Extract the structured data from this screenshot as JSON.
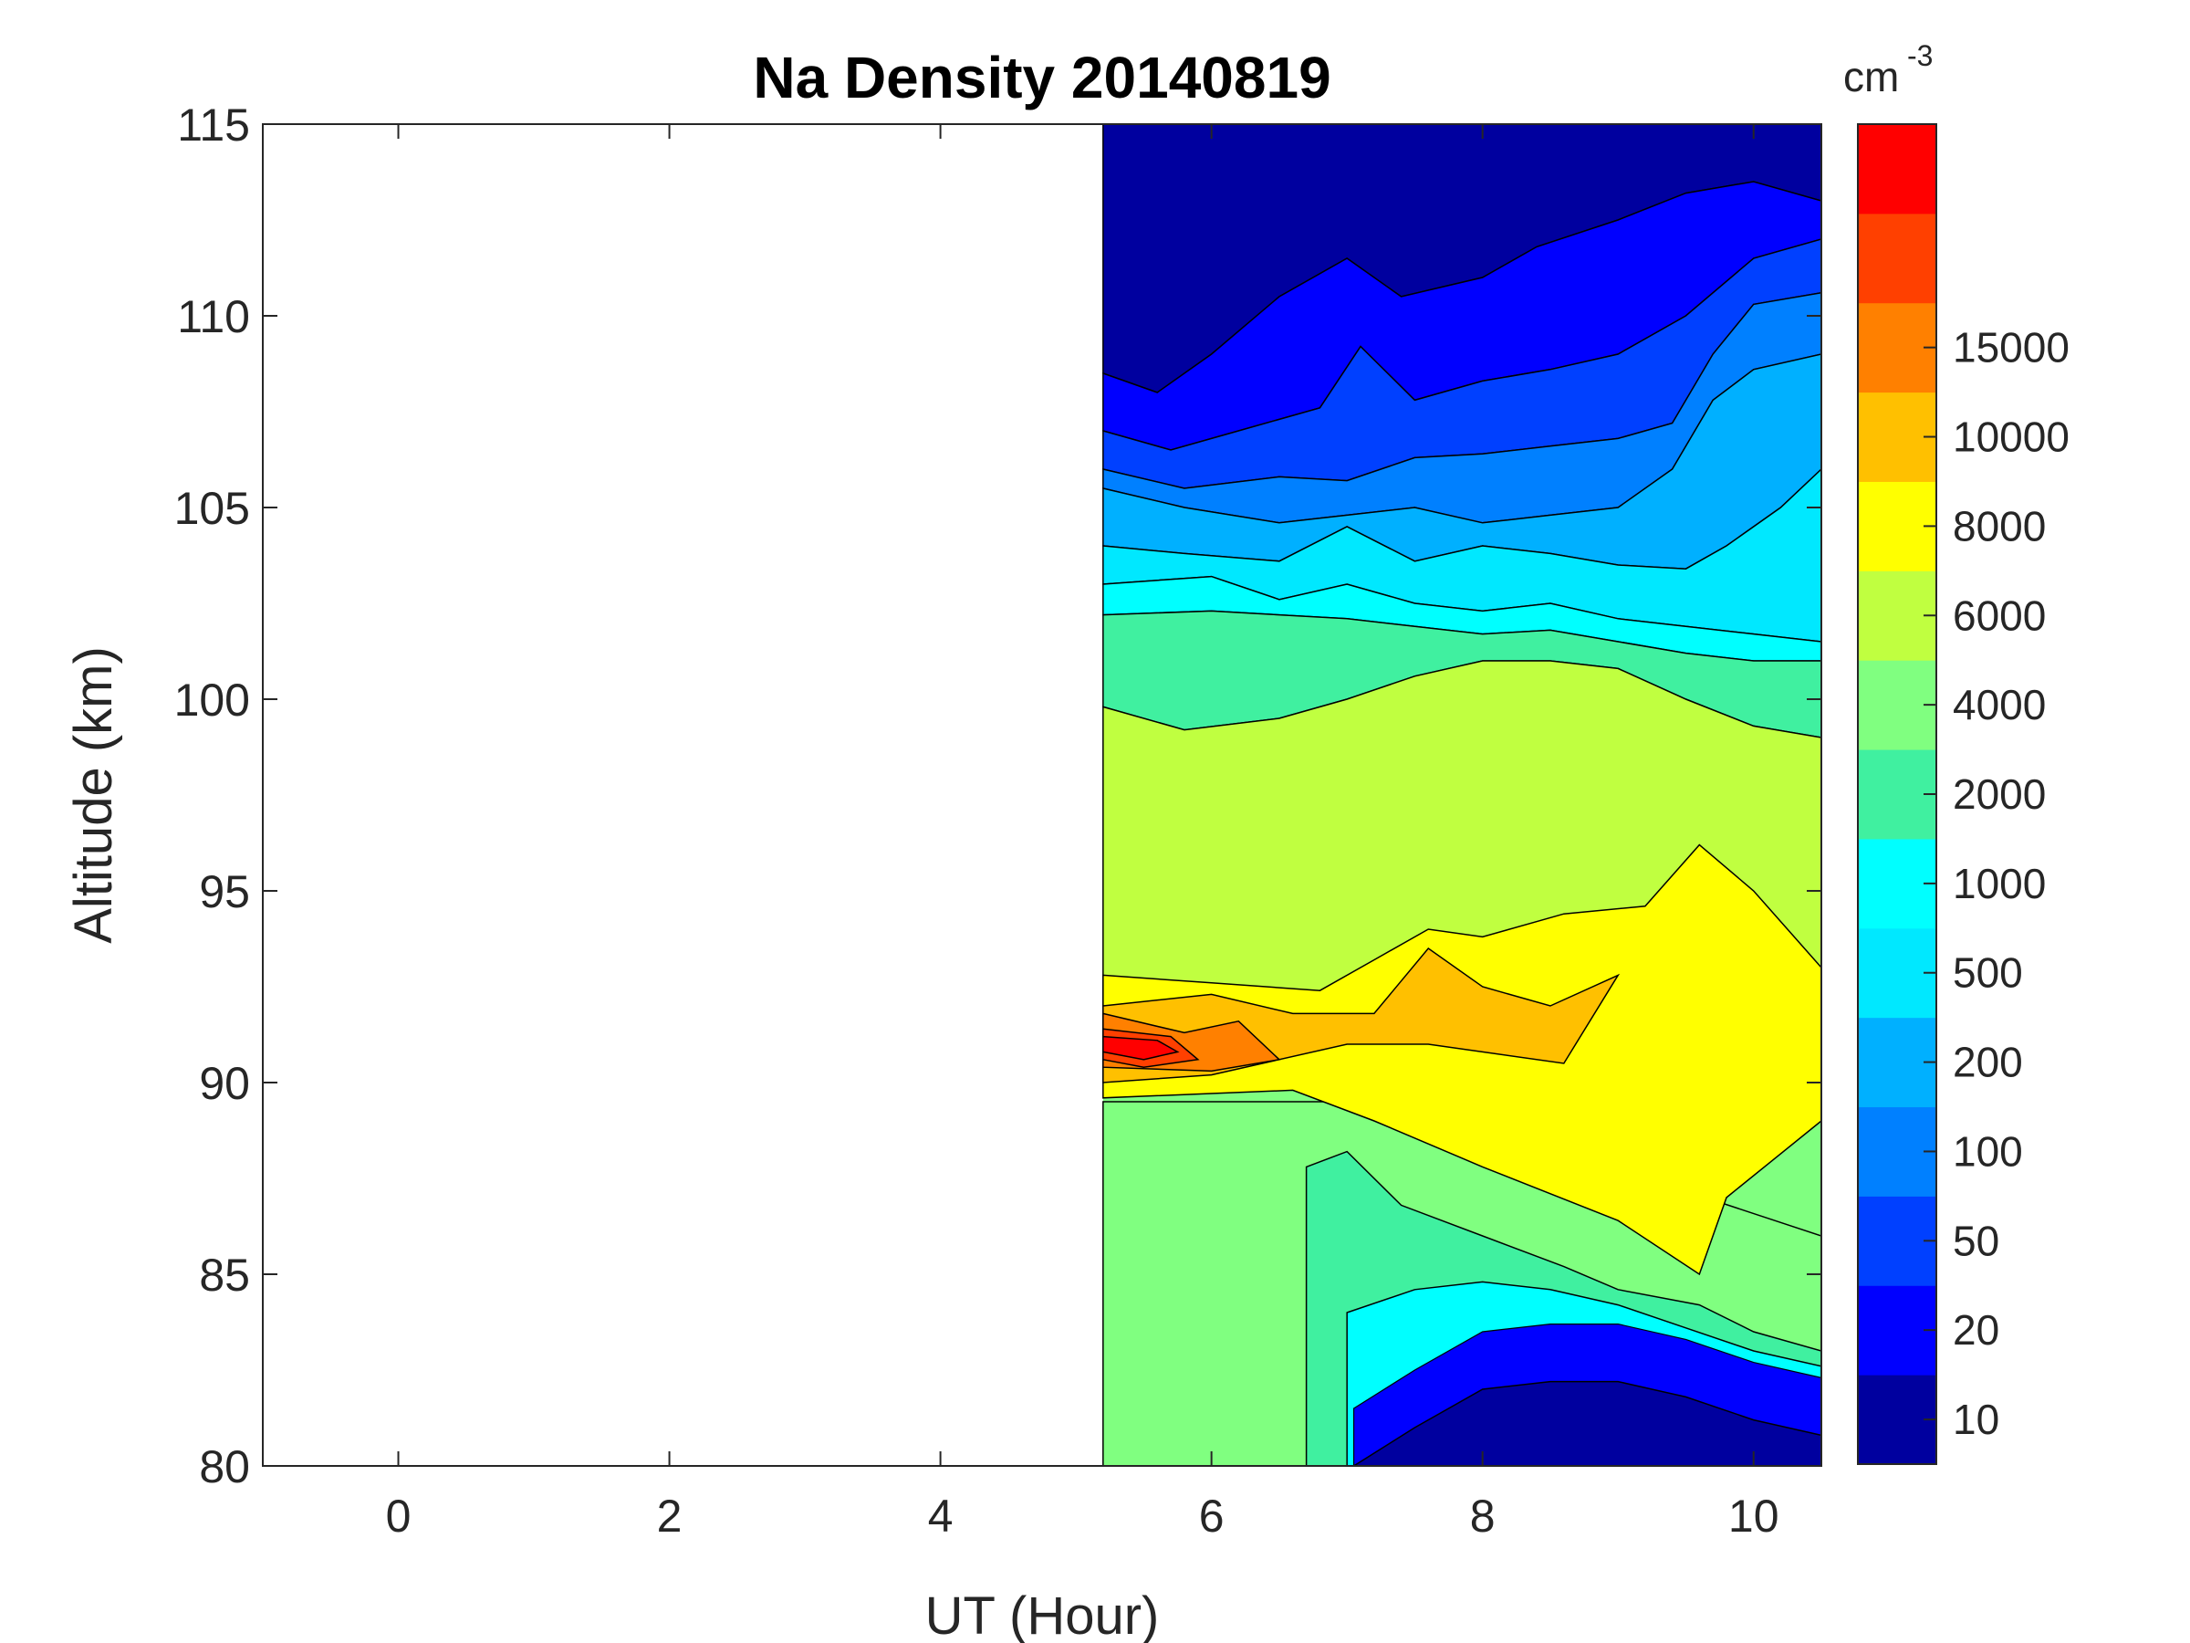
{
  "chart_data": {
    "type": "filled-contour",
    "title": "Na Density 20140819",
    "xlabel": "UT (Hour)",
    "ylabel": "Altitude (km)",
    "xlim": [
      -1,
      10.5
    ],
    "ylim": [
      80,
      115
    ],
    "x_ticks": [
      0,
      2,
      4,
      6,
      8,
      10
    ],
    "y_ticks": [
      80,
      85,
      90,
      95,
      100,
      105,
      110,
      115
    ],
    "data_start_hour": 5.2,
    "colorbar": {
      "unit": "cm",
      "unit_exponent": "-3",
      "levels": [
        10,
        20,
        50,
        100,
        200,
        500,
        1000,
        2000,
        4000,
        6000,
        8000,
        10000,
        15000
      ],
      "colors": [
        "#00009F",
        "#0000FF",
        "#0040FF",
        "#0080FF",
        "#00B0FF",
        "#00E8FF",
        "#00FFFF",
        "#40F0A0",
        "#80FF80",
        "#C0FF40",
        "#FFFF00",
        "#FFC000",
        "#FF8000",
        "#FF4000",
        "#FF0000"
      ]
    },
    "regions": [
      {
        "band": "10-20",
        "points": [
          [
            5.2,
            108.5
          ],
          [
            5.6,
            108
          ],
          [
            6,
            109
          ],
          [
            6.5,
            110.5
          ],
          [
            7,
            111.5
          ],
          [
            7.4,
            110.5
          ],
          [
            8,
            111
          ],
          [
            8.4,
            111.8
          ],
          [
            9,
            112.5
          ],
          [
            9.5,
            113.2
          ],
          [
            10,
            113.5
          ],
          [
            10.5,
            113
          ]
        ]
      },
      {
        "band": "20-50",
        "points": [
          [
            5.2,
            107
          ],
          [
            5.7,
            106.5
          ],
          [
            6.2,
            107
          ],
          [
            6.8,
            107.6
          ],
          [
            7.1,
            109.2
          ],
          [
            7.5,
            107.8
          ],
          [
            8,
            108.3
          ],
          [
            8.5,
            108.6
          ],
          [
            9,
            109
          ],
          [
            9.5,
            110
          ],
          [
            10,
            111.5
          ],
          [
            10.5,
            112
          ]
        ]
      },
      {
        "band": "50-100",
        "points": [
          [
            5.2,
            106
          ],
          [
            5.8,
            105.5
          ],
          [
            6.5,
            105.8
          ],
          [
            7,
            105.7
          ],
          [
            7.5,
            106.3
          ],
          [
            8,
            106.4
          ],
          [
            8.5,
            106.6
          ],
          [
            9,
            106.8
          ],
          [
            9.4,
            107.2
          ],
          [
            9.7,
            109
          ],
          [
            10,
            110.3
          ],
          [
            10.5,
            110.6
          ]
        ]
      },
      {
        "band": "100-200",
        "points": [
          [
            5.2,
            105.5
          ],
          [
            5.8,
            105
          ],
          [
            6.5,
            104.6
          ],
          [
            7,
            104.8
          ],
          [
            7.5,
            105
          ],
          [
            8,
            104.6
          ],
          [
            8.5,
            104.8
          ],
          [
            9,
            105
          ],
          [
            9.4,
            106
          ],
          [
            9.7,
            107.8
          ],
          [
            10,
            108.6
          ],
          [
            10.5,
            109
          ]
        ]
      },
      {
        "band": "200-500",
        "points": [
          [
            5.2,
            104
          ],
          [
            5.8,
            103.8
          ],
          [
            6.5,
            103.6
          ],
          [
            7,
            104.5
          ],
          [
            7.5,
            103.6
          ],
          [
            8,
            104
          ],
          [
            8.5,
            103.8
          ],
          [
            9,
            103.5
          ],
          [
            9.5,
            103.4
          ],
          [
            9.8,
            104
          ],
          [
            10.2,
            105
          ],
          [
            10.5,
            106
          ]
        ]
      },
      {
        "band": "500-1000",
        "points": [
          [
            5.2,
            103
          ],
          [
            6,
            103.2
          ],
          [
            6.5,
            102.6
          ],
          [
            7,
            103
          ],
          [
            7.5,
            102.5
          ],
          [
            8,
            102.3
          ],
          [
            8.5,
            102.5
          ],
          [
            9,
            102.1
          ],
          [
            9.5,
            101.9
          ],
          [
            10,
            101.7
          ],
          [
            10.5,
            101.5
          ]
        ]
      },
      {
        "band": "1000-2000",
        "points": [
          [
            5.2,
            102.2
          ],
          [
            6,
            102.3
          ],
          [
            7,
            102.1
          ],
          [
            7.5,
            101.9
          ],
          [
            8,
            101.7
          ],
          [
            8.5,
            101.8
          ],
          [
            9,
            101.5
          ],
          [
            9.5,
            101.2
          ],
          [
            10,
            101
          ],
          [
            10.5,
            101
          ]
        ]
      },
      {
        "band": "2000-4000",
        "points": [
          [
            5.2,
            99.8
          ],
          [
            5.8,
            99.2
          ],
          [
            6.5,
            99.5
          ],
          [
            7,
            100
          ],
          [
            7.5,
            100.6
          ],
          [
            8,
            101
          ],
          [
            8.5,
            101
          ],
          [
            9,
            100.8
          ],
          [
            9.5,
            100
          ],
          [
            10,
            99.3
          ],
          [
            10.5,
            99
          ]
        ]
      },
      {
        "band": "4000-6000",
        "points": [
          [
            5.2,
            92.8
          ],
          [
            6,
            92.6
          ],
          [
            6.8,
            92.4
          ],
          [
            7.2,
            93.2
          ],
          [
            7.6,
            94
          ],
          [
            8,
            93.8
          ],
          [
            8.6,
            94.4
          ],
          [
            9.2,
            94.6
          ],
          [
            9.6,
            96.2
          ],
          [
            10,
            95
          ],
          [
            10.5,
            93
          ]
        ]
      },
      {
        "band": "6000-8000",
        "points": [
          [
            5.2,
            92
          ],
          [
            6,
            92.3
          ],
          [
            6.6,
            91.8
          ],
          [
            7.2,
            91.8
          ],
          [
            7.6,
            93.5
          ],
          [
            8,
            92.5
          ],
          [
            8.5,
            92
          ],
          [
            9,
            92.8
          ],
          [
            8.6,
            90.5
          ],
          [
            7.6,
            91
          ],
          [
            7,
            91
          ],
          [
            6,
            90.2
          ],
          [
            5.2,
            90
          ]
        ]
      },
      {
        "band": "8000-10000",
        "points": [
          [
            5.2,
            91.8
          ],
          [
            5.8,
            91.3
          ],
          [
            6.2,
            91.6
          ],
          [
            6.5,
            90.6
          ],
          [
            6,
            90.3
          ],
          [
            5.2,
            90.4
          ]
        ]
      },
      {
        "band": "10000-15000",
        "points": [
          [
            5.2,
            91.4
          ],
          [
            5.7,
            91.2
          ],
          [
            5.9,
            90.6
          ],
          [
            5.5,
            90.4
          ],
          [
            5.2,
            90.6
          ]
        ]
      },
      {
        "band": "15000+",
        "points": [
          [
            5.2,
            91.2
          ],
          [
            5.6,
            91.1
          ],
          [
            5.75,
            90.8
          ],
          [
            5.5,
            90.6
          ],
          [
            5.2,
            90.8
          ]
        ]
      },
      {
        "band": "1000-2000-lower",
        "points": [
          [
            6.7,
            87.8
          ],
          [
            7,
            88.2
          ],
          [
            7.4,
            86.8
          ],
          [
            8,
            86
          ],
          [
            8.6,
            85.2
          ],
          [
            9,
            84.6
          ],
          [
            9.6,
            84.2
          ],
          [
            10,
            83.5
          ],
          [
            10.5,
            83
          ]
        ]
      },
      {
        "band": "500-1000-lower",
        "points": [
          [
            7,
            84
          ],
          [
            7.5,
            84.6
          ],
          [
            8,
            84.8
          ],
          [
            8.5,
            84.6
          ],
          [
            9,
            84.2
          ],
          [
            9.5,
            83.6
          ],
          [
            10,
            83
          ],
          [
            10.5,
            82.6
          ]
        ]
      },
      {
        "band": "10-20-lower",
        "points": [
          [
            7.05,
            80
          ],
          [
            7.5,
            81
          ],
          [
            8,
            82
          ],
          [
            8.5,
            82.2
          ],
          [
            9,
            82.2
          ],
          [
            9.5,
            81.8
          ],
          [
            10,
            81.2
          ],
          [
            10.5,
            80.8
          ]
        ]
      }
    ]
  }
}
